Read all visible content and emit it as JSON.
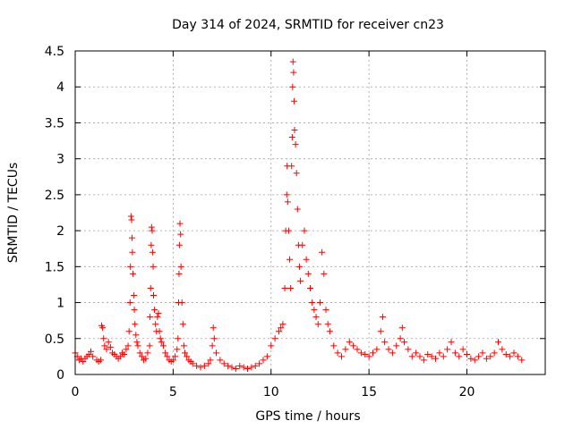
{
  "chart_data": {
    "type": "scatter",
    "title": "Day 314 of 2024, SRMTID for receiver cn23",
    "xlabel": "GPS time / hours",
    "ylabel": "SRMTID / TECUs",
    "xlim": [
      0,
      24
    ],
    "ylim": [
      0,
      4.5
    ],
    "xticks": [
      0,
      5,
      10,
      15,
      20
    ],
    "xtick_labels": [
      "0",
      "5",
      "10",
      "15",
      "20"
    ],
    "yticks": [
      0,
      0.5,
      1,
      1.5,
      2,
      2.5,
      3,
      3.5,
      4,
      4.5
    ],
    "ytick_labels": [
      "0",
      "0.5",
      "1",
      "1.5",
      "2",
      "2.5",
      "3",
      "3.5",
      "4",
      "4.5"
    ],
    "grid": true,
    "marker": "plus",
    "marker_color": "#ff0000",
    "series": [
      {
        "name": "SRMTID",
        "points": [
          [
            0.0,
            0.3
          ],
          [
            0.1,
            0.25
          ],
          [
            0.2,
            0.2
          ],
          [
            0.3,
            0.22
          ],
          [
            0.4,
            0.18
          ],
          [
            0.5,
            0.22
          ],
          [
            0.6,
            0.25
          ],
          [
            0.7,
            0.28
          ],
          [
            0.8,
            0.32
          ],
          [
            0.9,
            0.25
          ],
          [
            1.1,
            0.2
          ],
          [
            1.2,
            0.18
          ],
          [
            1.3,
            0.2
          ],
          [
            1.35,
            0.68
          ],
          [
            1.4,
            0.65
          ],
          [
            1.45,
            0.5
          ],
          [
            1.5,
            0.4
          ],
          [
            1.6,
            0.35
          ],
          [
            1.7,
            0.45
          ],
          [
            1.8,
            0.38
          ],
          [
            1.9,
            0.3
          ],
          [
            2.0,
            0.28
          ],
          [
            2.1,
            0.25
          ],
          [
            2.2,
            0.22
          ],
          [
            2.3,
            0.25
          ],
          [
            2.4,
            0.3
          ],
          [
            2.5,
            0.28
          ],
          [
            2.6,
            0.35
          ],
          [
            2.7,
            0.4
          ],
          [
            2.75,
            0.6
          ],
          [
            2.8,
            1.0
          ],
          [
            2.82,
            1.5
          ],
          [
            2.85,
            2.2
          ],
          [
            2.88,
            2.15
          ],
          [
            2.9,
            1.9
          ],
          [
            2.92,
            1.7
          ],
          [
            2.95,
            1.4
          ],
          [
            3.0,
            1.1
          ],
          [
            3.02,
            0.9
          ],
          [
            3.05,
            0.7
          ],
          [
            3.1,
            0.55
          ],
          [
            3.15,
            0.45
          ],
          [
            3.2,
            0.4
          ],
          [
            3.3,
            0.3
          ],
          [
            3.4,
            0.25
          ],
          [
            3.5,
            0.2
          ],
          [
            3.6,
            0.22
          ],
          [
            3.7,
            0.3
          ],
          [
            3.8,
            0.4
          ],
          [
            3.82,
            0.8
          ],
          [
            3.85,
            1.2
          ],
          [
            3.88,
            1.8
          ],
          [
            3.9,
            2.05
          ],
          [
            3.93,
            2.0
          ],
          [
            3.95,
            1.7
          ],
          [
            3.98,
            1.5
          ],
          [
            4.0,
            1.1
          ],
          [
            4.05,
            0.9
          ],
          [
            4.1,
            0.7
          ],
          [
            4.15,
            0.6
          ],
          [
            4.2,
            0.8
          ],
          [
            4.25,
            0.85
          ],
          [
            4.3,
            0.6
          ],
          [
            4.35,
            0.5
          ],
          [
            4.4,
            0.45
          ],
          [
            4.5,
            0.4
          ],
          [
            4.6,
            0.3
          ],
          [
            4.7,
            0.25
          ],
          [
            4.8,
            0.2
          ],
          [
            4.9,
            0.18
          ],
          [
            5.0,
            0.2
          ],
          [
            5.1,
            0.25
          ],
          [
            5.2,
            0.35
          ],
          [
            5.25,
            0.5
          ],
          [
            5.28,
            1.0
          ],
          [
            5.3,
            1.4
          ],
          [
            5.32,
            1.8
          ],
          [
            5.35,
            2.1
          ],
          [
            5.38,
            1.95
          ],
          [
            5.4,
            1.5
          ],
          [
            5.45,
            1.0
          ],
          [
            5.5,
            0.7
          ],
          [
            5.55,
            0.4
          ],
          [
            5.6,
            0.3
          ],
          [
            5.7,
            0.25
          ],
          [
            5.8,
            0.2
          ],
          [
            5.9,
            0.18
          ],
          [
            6.0,
            0.15
          ],
          [
            6.2,
            0.12
          ],
          [
            6.4,
            0.1
          ],
          [
            6.6,
            0.12
          ],
          [
            6.8,
            0.15
          ],
          [
            6.9,
            0.2
          ],
          [
            7.0,
            0.4
          ],
          [
            7.05,
            0.65
          ],
          [
            7.1,
            0.5
          ],
          [
            7.2,
            0.3
          ],
          [
            7.4,
            0.2
          ],
          [
            7.6,
            0.15
          ],
          [
            7.8,
            0.12
          ],
          [
            8.0,
            0.1
          ],
          [
            8.2,
            0.08
          ],
          [
            8.4,
            0.12
          ],
          [
            8.6,
            0.1
          ],
          [
            8.8,
            0.08
          ],
          [
            9.0,
            0.1
          ],
          [
            9.2,
            0.12
          ],
          [
            9.4,
            0.15
          ],
          [
            9.6,
            0.2
          ],
          [
            9.8,
            0.25
          ],
          [
            10.0,
            0.4
          ],
          [
            10.2,
            0.5
          ],
          [
            10.4,
            0.6
          ],
          [
            10.5,
            0.65
          ],
          [
            10.6,
            0.7
          ],
          [
            10.7,
            1.2
          ],
          [
            10.75,
            2.0
          ],
          [
            10.8,
            2.5
          ],
          [
            10.82,
            2.9
          ],
          [
            10.85,
            2.4
          ],
          [
            10.9,
            2.0
          ],
          [
            10.95,
            1.6
          ],
          [
            11.0,
            1.2
          ],
          [
            11.05,
            2.9
          ],
          [
            11.08,
            3.3
          ],
          [
            11.1,
            4.0
          ],
          [
            11.12,
            4.35
          ],
          [
            11.15,
            4.2
          ],
          [
            11.18,
            3.8
          ],
          [
            11.2,
            3.4
          ],
          [
            11.25,
            3.2
          ],
          [
            11.3,
            2.8
          ],
          [
            11.35,
            2.3
          ],
          [
            11.4,
            1.8
          ],
          [
            11.45,
            1.5
          ],
          [
            11.5,
            1.3
          ],
          [
            11.6,
            1.8
          ],
          [
            11.7,
            2.0
          ],
          [
            11.8,
            1.6
          ],
          [
            11.9,
            1.4
          ],
          [
            12.0,
            1.2
          ],
          [
            12.1,
            1.0
          ],
          [
            12.2,
            0.9
          ],
          [
            12.3,
            0.8
          ],
          [
            12.4,
            0.7
          ],
          [
            12.5,
            1.0
          ],
          [
            12.6,
            1.7
          ],
          [
            12.7,
            1.4
          ],
          [
            12.8,
            0.9
          ],
          [
            12.9,
            0.7
          ],
          [
            13.0,
            0.6
          ],
          [
            13.2,
            0.4
          ],
          [
            13.4,
            0.3
          ],
          [
            13.6,
            0.25
          ],
          [
            13.8,
            0.35
          ],
          [
            14.0,
            0.45
          ],
          [
            14.2,
            0.4
          ],
          [
            14.4,
            0.35
          ],
          [
            14.6,
            0.3
          ],
          [
            14.8,
            0.28
          ],
          [
            15.0,
            0.25
          ],
          [
            15.2,
            0.3
          ],
          [
            15.4,
            0.35
          ],
          [
            15.6,
            0.6
          ],
          [
            15.7,
            0.8
          ],
          [
            15.8,
            0.45
          ],
          [
            16.0,
            0.35
          ],
          [
            16.2,
            0.3
          ],
          [
            16.4,
            0.4
          ],
          [
            16.6,
            0.5
          ],
          [
            16.7,
            0.65
          ],
          [
            16.8,
            0.45
          ],
          [
            17.0,
            0.35
          ],
          [
            17.2,
            0.25
          ],
          [
            17.4,
            0.3
          ],
          [
            17.6,
            0.25
          ],
          [
            17.8,
            0.2
          ],
          [
            18.0,
            0.28
          ],
          [
            18.2,
            0.25
          ],
          [
            18.4,
            0.22
          ],
          [
            18.6,
            0.3
          ],
          [
            18.8,
            0.25
          ],
          [
            19.0,
            0.35
          ],
          [
            19.2,
            0.45
          ],
          [
            19.4,
            0.3
          ],
          [
            19.6,
            0.25
          ],
          [
            19.8,
            0.35
          ],
          [
            20.0,
            0.28
          ],
          [
            20.2,
            0.22
          ],
          [
            20.4,
            0.2
          ],
          [
            20.6,
            0.25
          ],
          [
            20.8,
            0.3
          ],
          [
            21.0,
            0.22
          ],
          [
            21.2,
            0.25
          ],
          [
            21.4,
            0.3
          ],
          [
            21.6,
            0.45
          ],
          [
            21.8,
            0.35
          ],
          [
            22.0,
            0.28
          ],
          [
            22.2,
            0.25
          ],
          [
            22.4,
            0.3
          ],
          [
            22.6,
            0.25
          ],
          [
            22.8,
            0.2
          ]
        ]
      }
    ]
  }
}
